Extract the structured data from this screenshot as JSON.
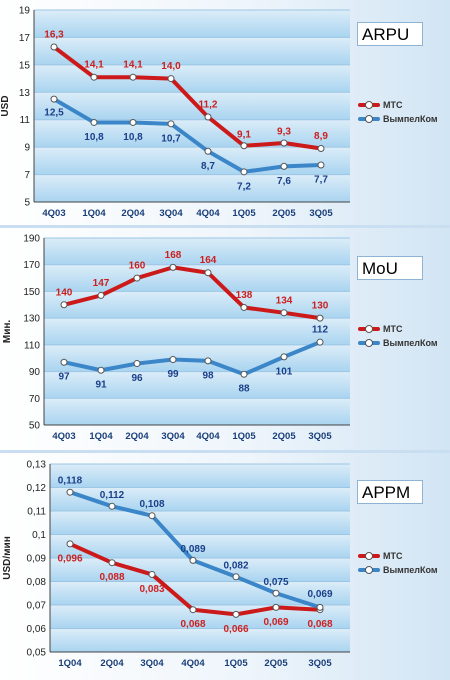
{
  "colors": {
    "mts": "#cc1a1a",
    "mts_label": "#cc2020",
    "vimpelcom": "#3a86c8",
    "vimpelcom_label": "#1a3f8a",
    "band_light": "#dcedf8",
    "band_dark": "#a9d4f0"
  },
  "legend": {
    "mts": "МТС",
    "vimpelcom": "ВымпелКом"
  },
  "chart_data": [
    {
      "type": "line",
      "title": "ARPU",
      "ylabel": "USD",
      "ylim": [
        5,
        19
      ],
      "yticks": [
        "5",
        "7",
        "9",
        "11",
        "13",
        "15",
        "17",
        "19"
      ],
      "categories": [
        "4Q03",
        "1Q04",
        "2Q04",
        "3Q04",
        "4Q04",
        "1Q05",
        "2Q05",
        "3Q05"
      ],
      "series": [
        {
          "name": "МТС",
          "values": [
            16.3,
            14.1,
            14.1,
            14.0,
            11.2,
            9.1,
            9.3,
            8.9
          ],
          "labels": [
            "16,3",
            "14,1",
            "14,1",
            "14,0",
            "11,2",
            "9,1",
            "9,3",
            "8,9"
          ]
        },
        {
          "name": "ВымпелКом",
          "values": [
            12.5,
            10.8,
            10.8,
            10.7,
            8.7,
            7.2,
            7.6,
            7.7
          ],
          "labels": [
            "12,5",
            "10,8",
            "10,8",
            "10,7",
            "8,7",
            "7,2",
            "7,6",
            "7,7"
          ]
        }
      ],
      "grid": true,
      "legend_position": "right"
    },
    {
      "type": "line",
      "title": "MoU",
      "ylabel": "Мин.",
      "ylim": [
        50,
        190
      ],
      "yticks": [
        "50",
        "70",
        "90",
        "110",
        "130",
        "150",
        "170",
        "190"
      ],
      "categories": [
        "4Q03",
        "1Q04",
        "2Q04",
        "3Q04",
        "4Q04",
        "1Q05",
        "2Q05",
        "3Q05"
      ],
      "series": [
        {
          "name": "МТС",
          "values": [
            140,
            147,
            160,
            168,
            164,
            138,
            134,
            130
          ],
          "labels": [
            "140",
            "147",
            "160",
            "168",
            "164",
            "138",
            "134",
            "130"
          ]
        },
        {
          "name": "ВымпелКом",
          "values": [
            97,
            91,
            96,
            99,
            98,
            88,
            101,
            112
          ],
          "labels": [
            "97",
            "91",
            "96",
            "99",
            "98",
            "88",
            "101",
            "112"
          ]
        }
      ],
      "grid": true,
      "legend_position": "right"
    },
    {
      "type": "line",
      "title": "APPM",
      "ylabel": "USD/мин",
      "ylim": [
        0.05,
        0.13
      ],
      "yticks": [
        "0,05",
        "0,06",
        "0,07",
        "0,08",
        "0,09",
        "0,1",
        "0,11",
        "0,12",
        "0,13"
      ],
      "categories": [
        "1Q04",
        "2Q04",
        "3Q04",
        "4Q04",
        "1Q05",
        "2Q05",
        "3Q05"
      ],
      "series": [
        {
          "name": "МТС",
          "values": [
            0.096,
            0.088,
            0.083,
            0.068,
            0.066,
            0.069,
            0.068
          ],
          "labels": [
            "0,096",
            "0,088",
            "0,083",
            "0,068",
            "0,066",
            "0,069",
            "0,068"
          ]
        },
        {
          "name": "ВымпелКом",
          "values": [
            0.118,
            0.112,
            0.108,
            0.089,
            0.082,
            0.075,
            0.069
          ],
          "labels": [
            "0,118",
            "0,112",
            "0,108",
            "0,089",
            "0,082",
            "0,075",
            "0,069"
          ]
        }
      ],
      "grid": true,
      "legend_position": "right"
    }
  ]
}
